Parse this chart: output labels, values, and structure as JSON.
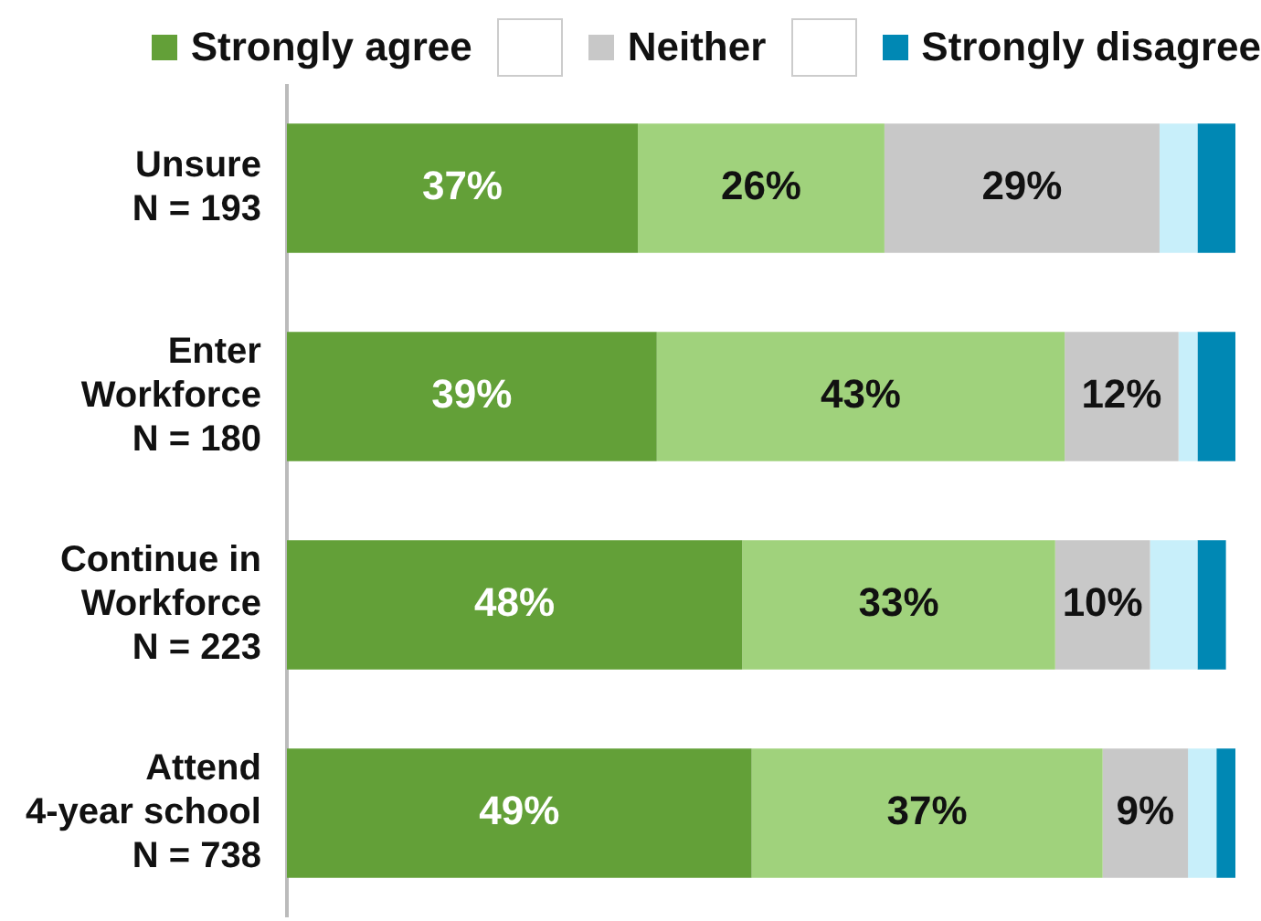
{
  "chart_data": {
    "type": "bar",
    "orientation": "horizontal",
    "stacked": true,
    "categories": [
      "Unsure\nN = 193",
      "Enter\nWorkforce\nN = 180",
      "Continue in\nWorkforce\nN = 223",
      "Attend\n4-year school\nN = 738"
    ],
    "xlim": [
      0,
      100
    ],
    "series": [
      {
        "name": "Strongly agree",
        "color": "#63a038",
        "values": [
          37,
          39,
          48,
          49
        ],
        "value_labels": [
          "37%",
          "39%",
          "48%",
          "49%"
        ]
      },
      {
        "color": "#a0d27c",
        "values": [
          26,
          43,
          33,
          37
        ],
        "value_labels": [
          "26%",
          "43%",
          "33%",
          "37%"
        ]
      },
      {
        "name": "Neither",
        "color": "#c8c8c8",
        "values": [
          29,
          12,
          10,
          9
        ],
        "value_labels": [
          "29%",
          "12%",
          "10%",
          "9%"
        ]
      },
      {
        "color": "#c8effa",
        "values": [
          4,
          2,
          5,
          3
        ]
      },
      {
        "name": "Strongly disagree",
        "color": "#0088b4",
        "values": [
          4,
          4,
          3,
          2
        ]
      }
    ],
    "legend": "top"
  }
}
